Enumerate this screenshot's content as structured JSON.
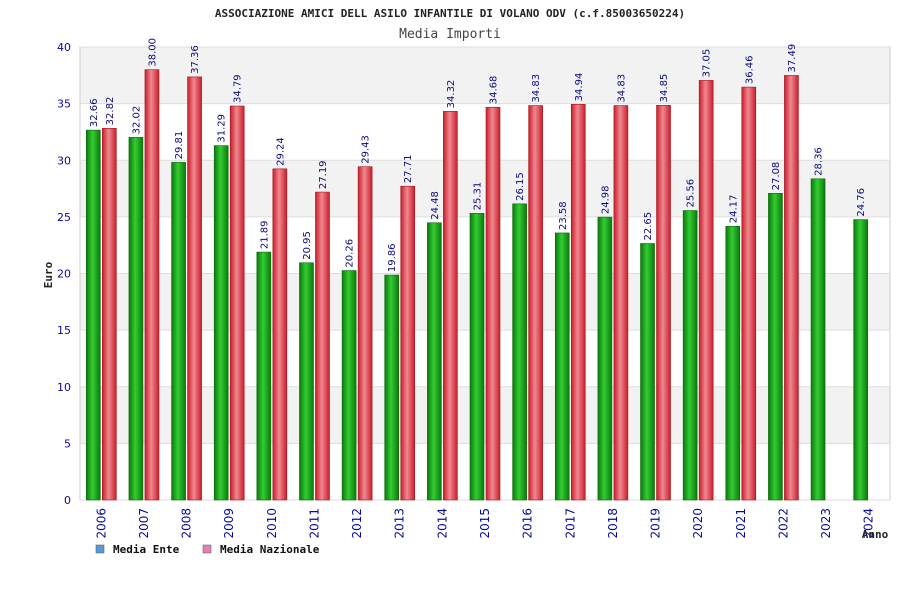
{
  "chart_data": {
    "type": "bar",
    "title": "ASSOCIAZIONE AMICI DELL ASILO INFANTILE DI VOLANO ODV (c.f.85003650224)",
    "subtitle": "Media Importi",
    "xlabel": "Anno",
    "ylabel": "Euro",
    "ylim": [
      0,
      40
    ],
    "yticks": [
      0,
      5,
      10,
      15,
      20,
      25,
      30,
      35,
      40
    ],
    "grid": true,
    "legend_position": "bottom-left",
    "categories": [
      "2006",
      "2007",
      "2008",
      "2009",
      "2010",
      "2011",
      "2012",
      "2013",
      "2014",
      "2015",
      "2016",
      "2017",
      "2018",
      "2019",
      "2020",
      "2021",
      "2022",
      "2023",
      "2024"
    ],
    "series": [
      {
        "name": "Media Ente",
        "color": "#22aa22",
        "legend_color": "#5b9bd5",
        "values": [
          32.66,
          32.02,
          29.81,
          31.29,
          21.89,
          20.95,
          20.26,
          19.86,
          24.48,
          25.31,
          26.15,
          23.58,
          24.98,
          22.65,
          25.56,
          24.17,
          27.08,
          28.36,
          24.76
        ],
        "labels": [
          "32.66",
          "32.02",
          "29.81",
          "31.29",
          "21.89",
          "20.95",
          "20.26",
          "19.86",
          "24.48",
          "25.31",
          "26.15",
          "23.58",
          "24.98",
          "22.65",
          "25.56",
          "24.17",
          "27.08",
          "28.36",
          "24.76"
        ]
      },
      {
        "name": "Media Nazionale",
        "color": "#e8303a",
        "legend_color": "#e27fb4",
        "values": [
          32.82,
          38.0,
          37.36,
          34.79,
          29.24,
          27.19,
          29.43,
          27.71,
          34.32,
          34.68,
          34.83,
          34.94,
          34.83,
          34.85,
          37.05,
          36.46,
          37.49,
          null,
          null
        ],
        "labels": [
          "32.82",
          "38.00",
          "37.36",
          "34.79",
          "29.24",
          "27.19",
          "29.43",
          "27.71",
          "34.32",
          "34.68",
          "34.83",
          "34.94",
          "34.83",
          "34.85",
          "37.05",
          "36.46",
          "37.49",
          "",
          ""
        ]
      }
    ]
  }
}
